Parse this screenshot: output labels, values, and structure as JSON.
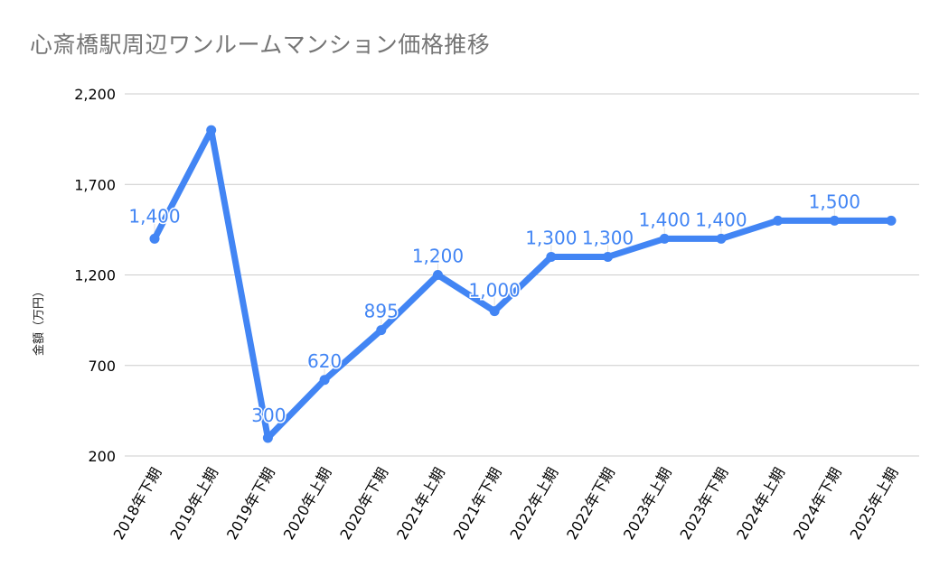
{
  "chart_data": {
    "type": "line",
    "title": "心斎橋駅周辺ワンルームマンション価格推移",
    "xlabel": "",
    "ylabel": "金額（万円）",
    "categories": [
      "2018年下期",
      "2019年上期",
      "2019年下期",
      "2020年上期",
      "2020年下期",
      "2021年上期",
      "2021年下期",
      "2022年上期",
      "2022年下期",
      "2023年上期",
      "2023年下期",
      "2024年上期",
      "2024年下期",
      "2025年上期"
    ],
    "series": [
      {
        "name": "金額（万円）",
        "values": [
          1400,
          2000,
          300,
          620,
          895,
          1200,
          1000,
          1300,
          1300,
          1400,
          1400,
          1500,
          1500,
          1500
        ],
        "data_labels": [
          "1,400",
          "",
          "300",
          "620",
          "895",
          "1,200",
          "1,000",
          "1,300",
          "1,300",
          "1,400",
          "1,400",
          "",
          "1,500",
          ""
        ],
        "color": "#4285f4"
      }
    ],
    "ylim": [
      200,
      2200
    ],
    "yticks": [
      200,
      700,
      1200,
      1700,
      2200
    ],
    "ytick_labels": [
      "200",
      "700",
      "1,200",
      "1,700",
      "2,200"
    ],
    "grid": true,
    "legend": "none"
  },
  "colors": {
    "line": "#4285f4",
    "label": "#4285f4",
    "grid": "#cccccc",
    "title": "#757575",
    "axis_text": "#000000"
  }
}
